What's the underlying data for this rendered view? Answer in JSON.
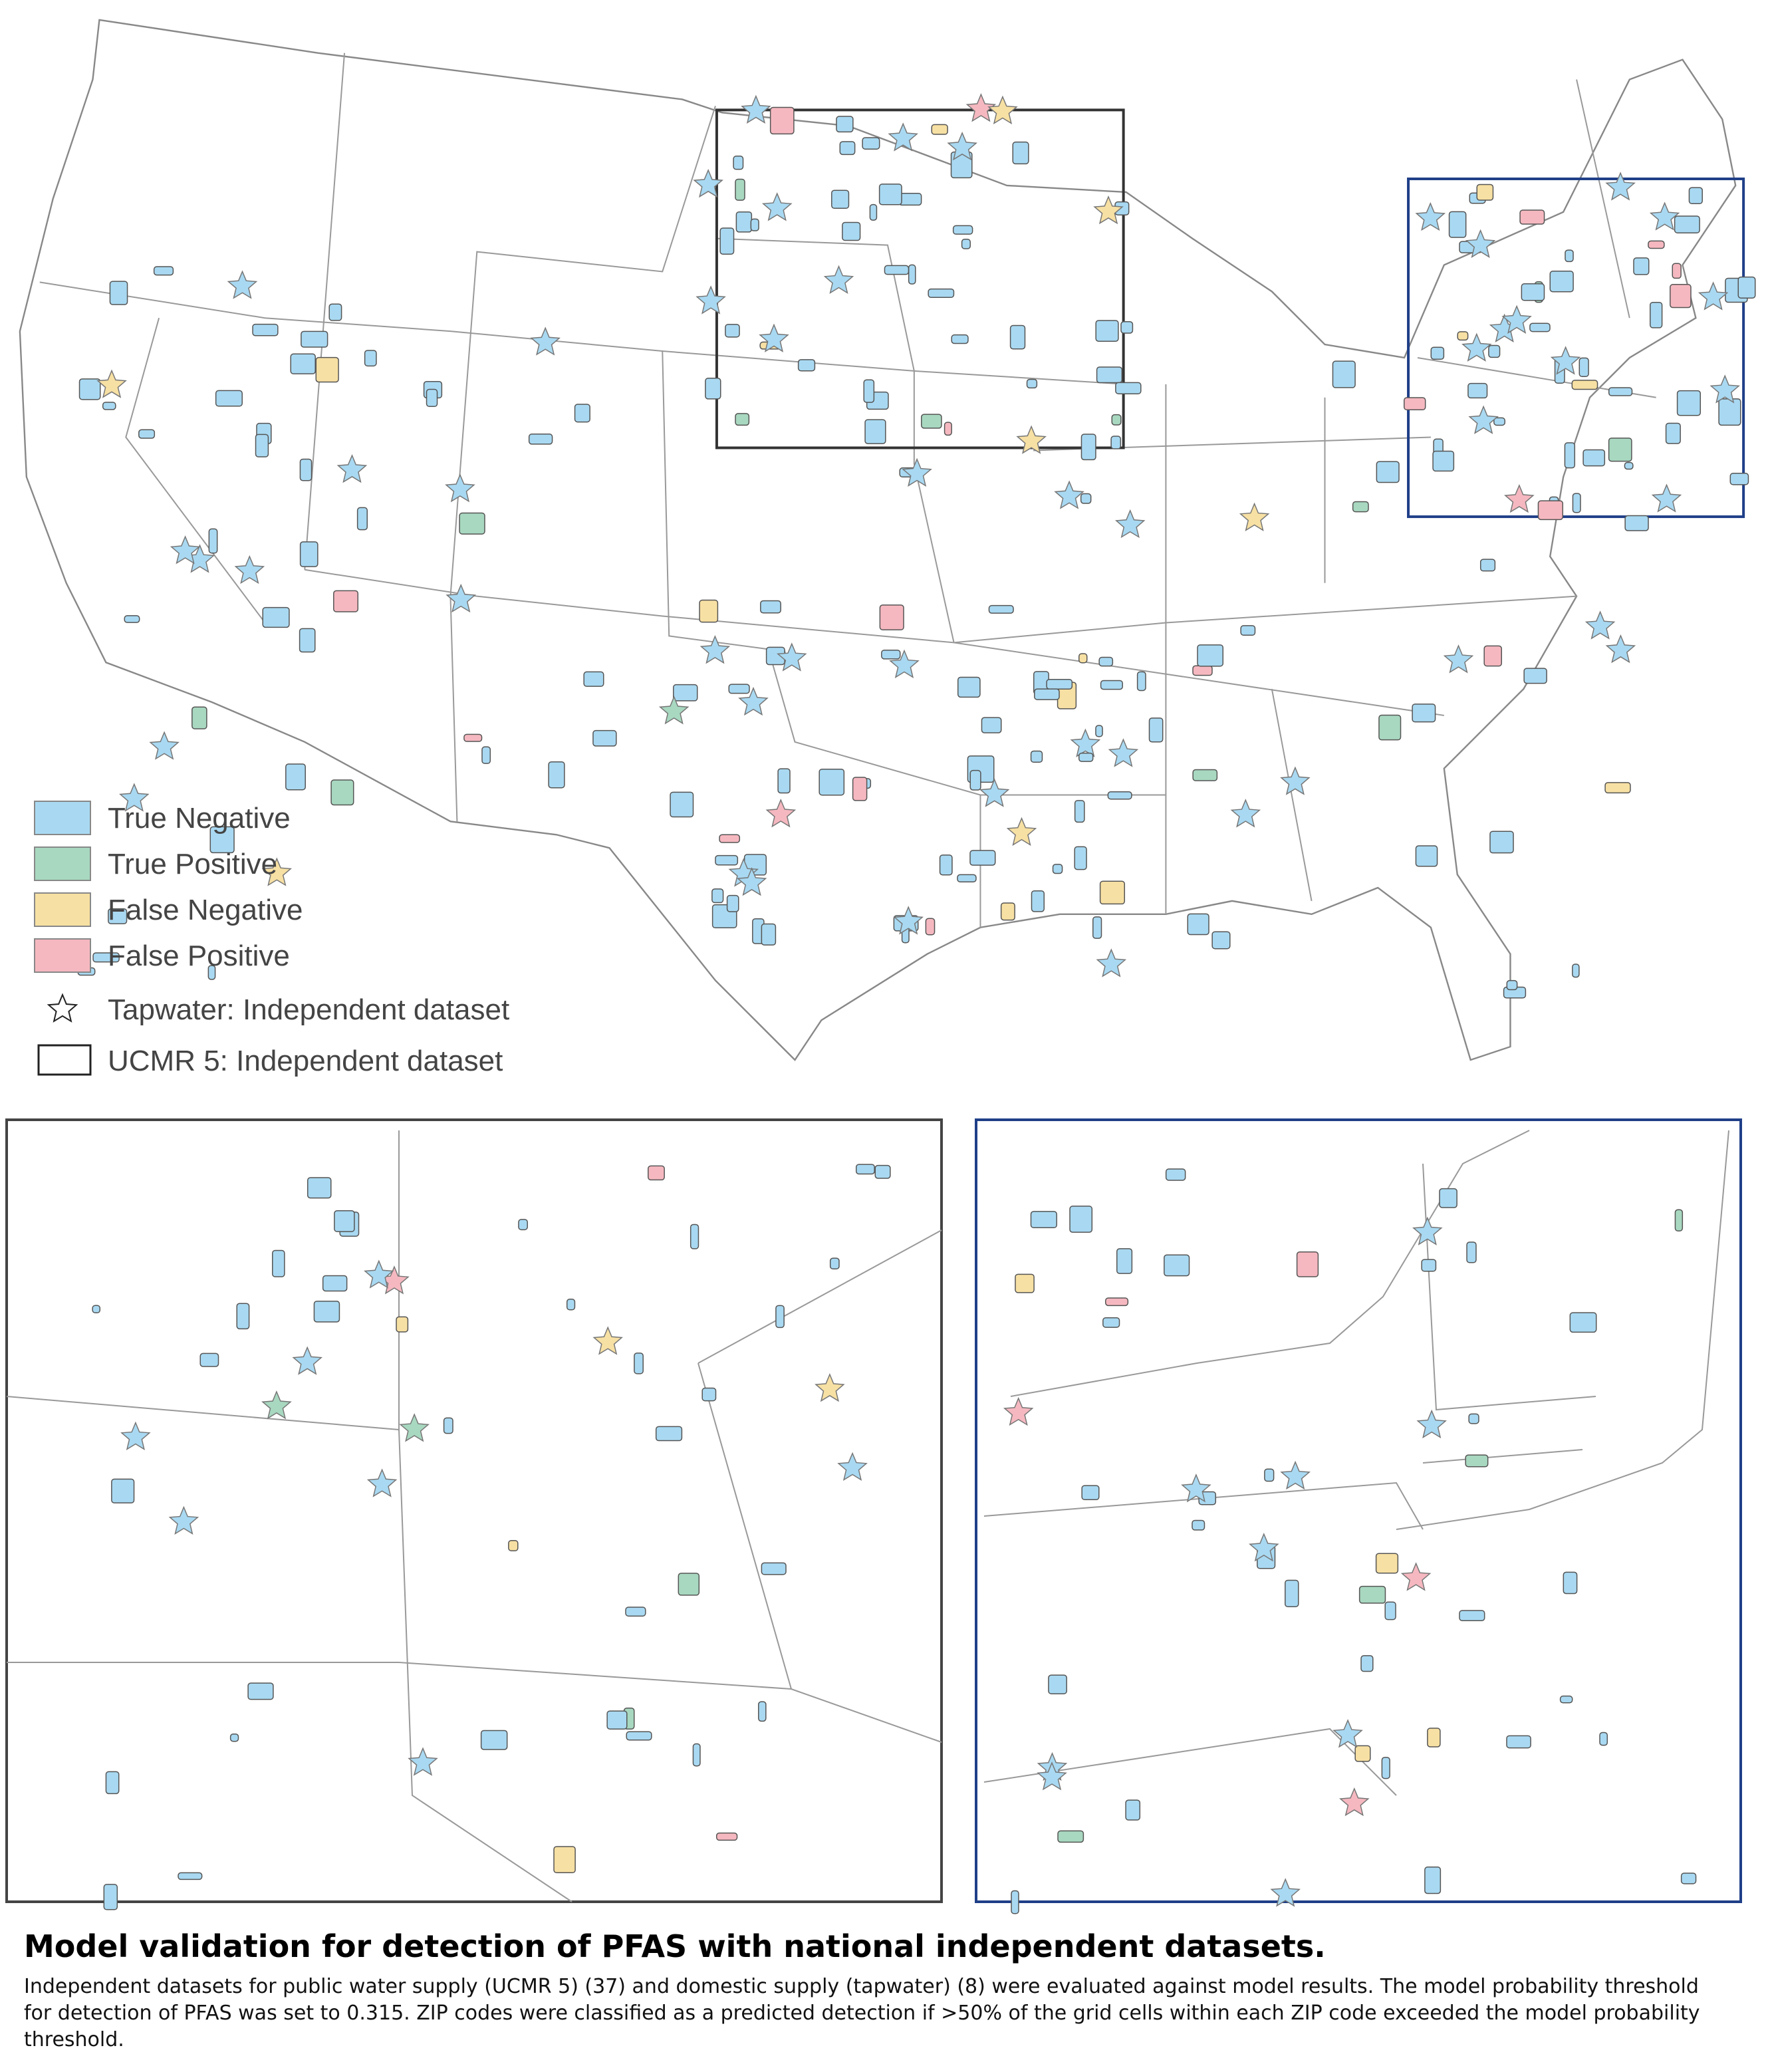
{
  "legend": {
    "items": [
      {
        "label": "True Negative",
        "color": "#a9d9f2"
      },
      {
        "label": "True Positive",
        "color": "#a8d8c0"
      },
      {
        "label": "False Negative",
        "color": "#f7e0a3"
      },
      {
        "label": "False Positive",
        "color": "#f6b8c0"
      }
    ],
    "tapwater": "Tapwater:  Independent dataset",
    "ucmr": "UCMR 5: Independent dataset"
  },
  "caption": {
    "title": "Model validation for detection of PFAS with national independent datasets.",
    "text": "Independent datasets for public water supply (UCMR 5) (37) and domestic supply (tapwater) (8) were evaluated against model results. The model probability threshold for detection of PFAS was set to 0.315. ZIP codes were classified as a predicted detection if >50% of the grid cells within each ZIP code exceeded the model probability threshold."
  }
}
